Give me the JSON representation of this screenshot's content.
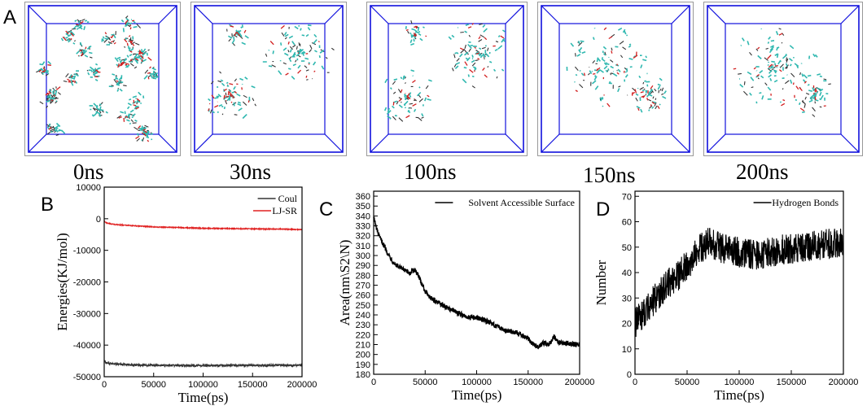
{
  "panel_a": {
    "label": "A",
    "snapshots": [
      {
        "time": "0ns",
        "arrangement": "dispersed"
      },
      {
        "time": "30ns",
        "arrangement": "two-clusters"
      },
      {
        "time": "100ns",
        "arrangement": "two-clusters"
      },
      {
        "time": "150ns",
        "arrangement": "single-cluster"
      },
      {
        "time": "200ns",
        "arrangement": "single-cluster"
      }
    ],
    "colors": {
      "box_edge": "#1010dd",
      "molecule": "#2fb8b0",
      "oxygen": "#d21f1f",
      "backbone": "#333333"
    }
  },
  "chart_data": [
    {
      "panel": "B",
      "type": "line",
      "ylabel": "Energies(KJ/mol)",
      "xlabel": "Time(ps)",
      "xlim": [
        0,
        200000
      ],
      "ylim": [
        -50000,
        10000
      ],
      "xticks": [
        0,
        50000,
        100000,
        150000,
        200000
      ],
      "xtick_labels": [
        "0",
        "50000",
        "100000",
        "150000",
        "200000"
      ],
      "yticks": [
        10000,
        0,
        -10000,
        -20000,
        -30000,
        -40000,
        -50000
      ],
      "ytick_labels": [
        "10000",
        "0",
        "-10000",
        "-20000",
        "-30000",
        "-40000",
        "-50000"
      ],
      "legend": [
        {
          "name": "Coul",
          "color": "#333333"
        },
        {
          "name": "LJ-SR",
          "color": "#e02020"
        }
      ],
      "legend_position": "top-right",
      "series": [
        {
          "name": "Coul",
          "color": "#333333",
          "x": [
            0,
            2000,
            10000,
            30000,
            50000,
            100000,
            150000,
            200000
          ],
          "y": [
            -44800,
            -45600,
            -46000,
            -46300,
            -46400,
            -46500,
            -46400,
            -46400
          ],
          "noise": 350
        },
        {
          "name": "LJ-SR",
          "color": "#e02020",
          "x": [
            0,
            2000,
            10000,
            30000,
            50000,
            100000,
            150000,
            200000
          ],
          "y": [
            -800,
            -1300,
            -1800,
            -2200,
            -2600,
            -3000,
            -3200,
            -3400
          ],
          "noise": 150
        }
      ]
    },
    {
      "panel": "C",
      "type": "line",
      "ylabel": "Area(nm\\S2\\N)",
      "xlabel": "Time(ps)",
      "xlim": [
        0,
        200000
      ],
      "ylim": [
        180,
        365
      ],
      "xticks": [
        0,
        50000,
        100000,
        150000,
        200000
      ],
      "xtick_labels": [
        "0",
        "50000",
        "100000",
        "150000",
        "200000"
      ],
      "yticks": [
        180,
        190,
        200,
        210,
        220,
        230,
        240,
        250,
        260,
        270,
        280,
        290,
        300,
        310,
        320,
        330,
        340,
        350,
        360
      ],
      "ytick_labels": [
        "180",
        "190",
        "200",
        "210",
        "220",
        "230",
        "240",
        "250",
        "260",
        "270",
        "280",
        "290",
        "300",
        "310",
        "320",
        "330",
        "340",
        "350",
        "360"
      ],
      "legend": [
        {
          "name": "Solvent Accessible Surface",
          "color": "#000000"
        }
      ],
      "legend_position": "top-right",
      "series": [
        {
          "name": "Solvent Accessible Surface",
          "color": "#000000",
          "x": [
            0,
            2000,
            5000,
            10000,
            15000,
            20000,
            25000,
            30000,
            35000,
            40000,
            45000,
            50000,
            55000,
            60000,
            70000,
            80000,
            90000,
            100000,
            110000,
            120000,
            130000,
            140000,
            150000,
            155000,
            160000,
            165000,
            170000,
            175000,
            180000,
            190000,
            200000
          ],
          "y": [
            340,
            330,
            320,
            310,
            300,
            292,
            288,
            285,
            282,
            286,
            276,
            264,
            258,
            254,
            248,
            243,
            238,
            237,
            234,
            228,
            224,
            222,
            216,
            210,
            208,
            212,
            210,
            218,
            212,
            211,
            210
          ],
          "noise": 2.5
        }
      ]
    },
    {
      "panel": "D",
      "type": "line",
      "ylabel": "Number",
      "xlabel": "Time(ps)",
      "xlim": [
        0,
        200000
      ],
      "ylim": [
        0,
        72
      ],
      "xticks": [
        0,
        50000,
        100000,
        150000,
        200000
      ],
      "xtick_labels": [
        "0",
        "50000",
        "100000",
        "150000",
        "200000"
      ],
      "yticks": [
        0,
        10,
        20,
        30,
        40,
        50,
        60,
        70
      ],
      "ytick_labels": [
        "0",
        "10",
        "20",
        "30",
        "40",
        "50",
        "60",
        "70"
      ],
      "legend": [
        {
          "name": "Hydrogen Bonds",
          "color": "#000000"
        }
      ],
      "legend_position": "top-right",
      "series": [
        {
          "name": "Hydrogen Bonds",
          "color": "#000000",
          "x": [
            0,
            10000,
            20000,
            30000,
            40000,
            50000,
            60000,
            70000,
            80000,
            100000,
            120000,
            140000,
            160000,
            180000,
            200000
          ],
          "y": [
            20,
            25,
            30,
            35,
            38,
            43,
            48,
            52,
            50,
            48,
            47,
            49,
            50,
            51,
            52
          ],
          "noise": 6
        }
      ]
    }
  ],
  "panel_labels": {
    "b": "B",
    "c": "C",
    "d": "D"
  }
}
